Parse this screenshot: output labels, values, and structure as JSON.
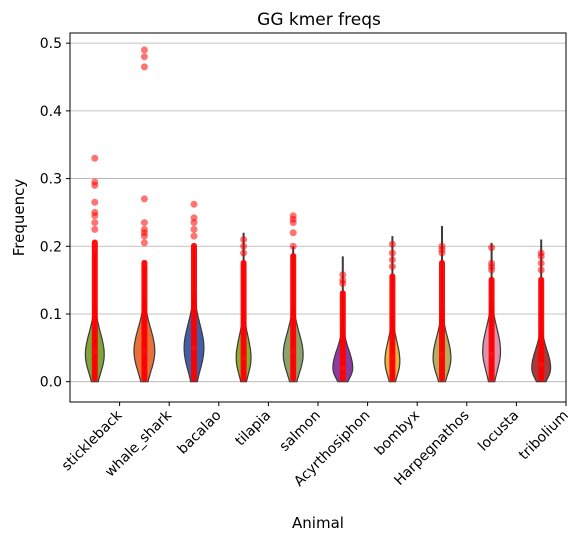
{
  "chart_data": {
    "type": "violin",
    "title": "GG kmer freqs",
    "xlabel": "Animal",
    "ylabel": "Frequency",
    "ylim": [
      -0.03,
      0.515
    ],
    "yticks": [
      0.0,
      0.1,
      0.2,
      0.3,
      0.4,
      0.5
    ],
    "ytick_labels": [
      "0.0",
      "0.1",
      "0.2",
      "0.3",
      "0.4",
      "0.5"
    ],
    "grid": "y",
    "categories": [
      "stickleback",
      "whale_shark",
      "bacalao",
      "tilapia",
      "salmon",
      "Acyrthosiphon",
      "bombyx",
      "Harpegnathos",
      "locusta",
      "tribolium"
    ],
    "xtick_labels": [
      "stickleback",
      "whale_shark",
      "bacalao",
      "tilapia",
      "salmon",
      "Acyrthosiphon",
      "bombyx",
      "Harpegnathos",
      "locusta",
      "tribolium"
    ],
    "violins": [
      {
        "color": "#7fa53a",
        "median": 0.045,
        "max": 0.19,
        "peak": 0.04,
        "width": 0.38
      },
      {
        "color": "#e8703a",
        "median": 0.045,
        "max": 0.17,
        "peak": 0.045,
        "width": 0.42
      },
      {
        "color": "#3f5fa6",
        "median": 0.05,
        "max": 0.2,
        "peak": 0.05,
        "width": 0.4
      },
      {
        "color": "#8cab2f",
        "median": 0.035,
        "max": 0.22,
        "peak": 0.035,
        "width": 0.3
      },
      {
        "color": "#8ca36a",
        "median": 0.045,
        "max": 0.2,
        "peak": 0.04,
        "width": 0.4
      },
      {
        "color": "#8a3ca0",
        "median": 0.02,
        "max": 0.185,
        "peak": 0.02,
        "width": 0.4
      },
      {
        "color": "#e8b440",
        "median": 0.035,
        "max": 0.215,
        "peak": 0.03,
        "width": 0.3
      },
      {
        "color": "#b8ac5a",
        "median": 0.04,
        "max": 0.23,
        "peak": 0.035,
        "width": 0.36
      },
      {
        "color": "#e090a8",
        "median": 0.04,
        "max": 0.205,
        "peak": 0.045,
        "width": 0.36
      },
      {
        "color": "#a83a3a",
        "median": 0.025,
        "max": 0.21,
        "peak": 0.02,
        "width": 0.38
      }
    ],
    "strip_points": [
      {
        "category": "stickleback",
        "max_dense": 0.21,
        "outliers": [
          0.33,
          0.295,
          0.29,
          0.265,
          0.25,
          0.245,
          0.235,
          0.225
        ]
      },
      {
        "category": "whale_shark",
        "max_dense": 0.18,
        "outliers": [
          0.49,
          0.48,
          0.465,
          0.27,
          0.235,
          0.225,
          0.22,
          0.215,
          0.205
        ]
      },
      {
        "category": "bacalao",
        "max_dense": 0.205,
        "outliers": [
          0.262,
          0.242,
          0.235,
          0.225,
          0.215
        ]
      },
      {
        "category": "tilapia",
        "max_dense": 0.18,
        "outliers": [
          0.21,
          0.2,
          0.19
        ]
      },
      {
        "category": "salmon",
        "max_dense": 0.19,
        "outliers": [
          0.245,
          0.24,
          0.235,
          0.22,
          0.2
        ]
      },
      {
        "category": "Acyrthosiphon",
        "max_dense": 0.135,
        "outliers": [
          0.158,
          0.15,
          0.145
        ]
      },
      {
        "category": "bombyx",
        "max_dense": 0.16,
        "outliers": [
          0.203,
          0.19,
          0.18,
          0.17
        ]
      },
      {
        "category": "Harpegnathos",
        "max_dense": 0.18,
        "outliers": [
          0.2,
          0.195,
          0.19
        ]
      },
      {
        "category": "locusta",
        "max_dense": 0.155,
        "outliers": [
          0.198,
          0.175,
          0.17,
          0.165
        ]
      },
      {
        "category": "tribolium",
        "max_dense": 0.155,
        "outliers": [
          0.19,
          0.185,
          0.175,
          0.165
        ]
      }
    ],
    "strip_color": "#ff0000"
  }
}
